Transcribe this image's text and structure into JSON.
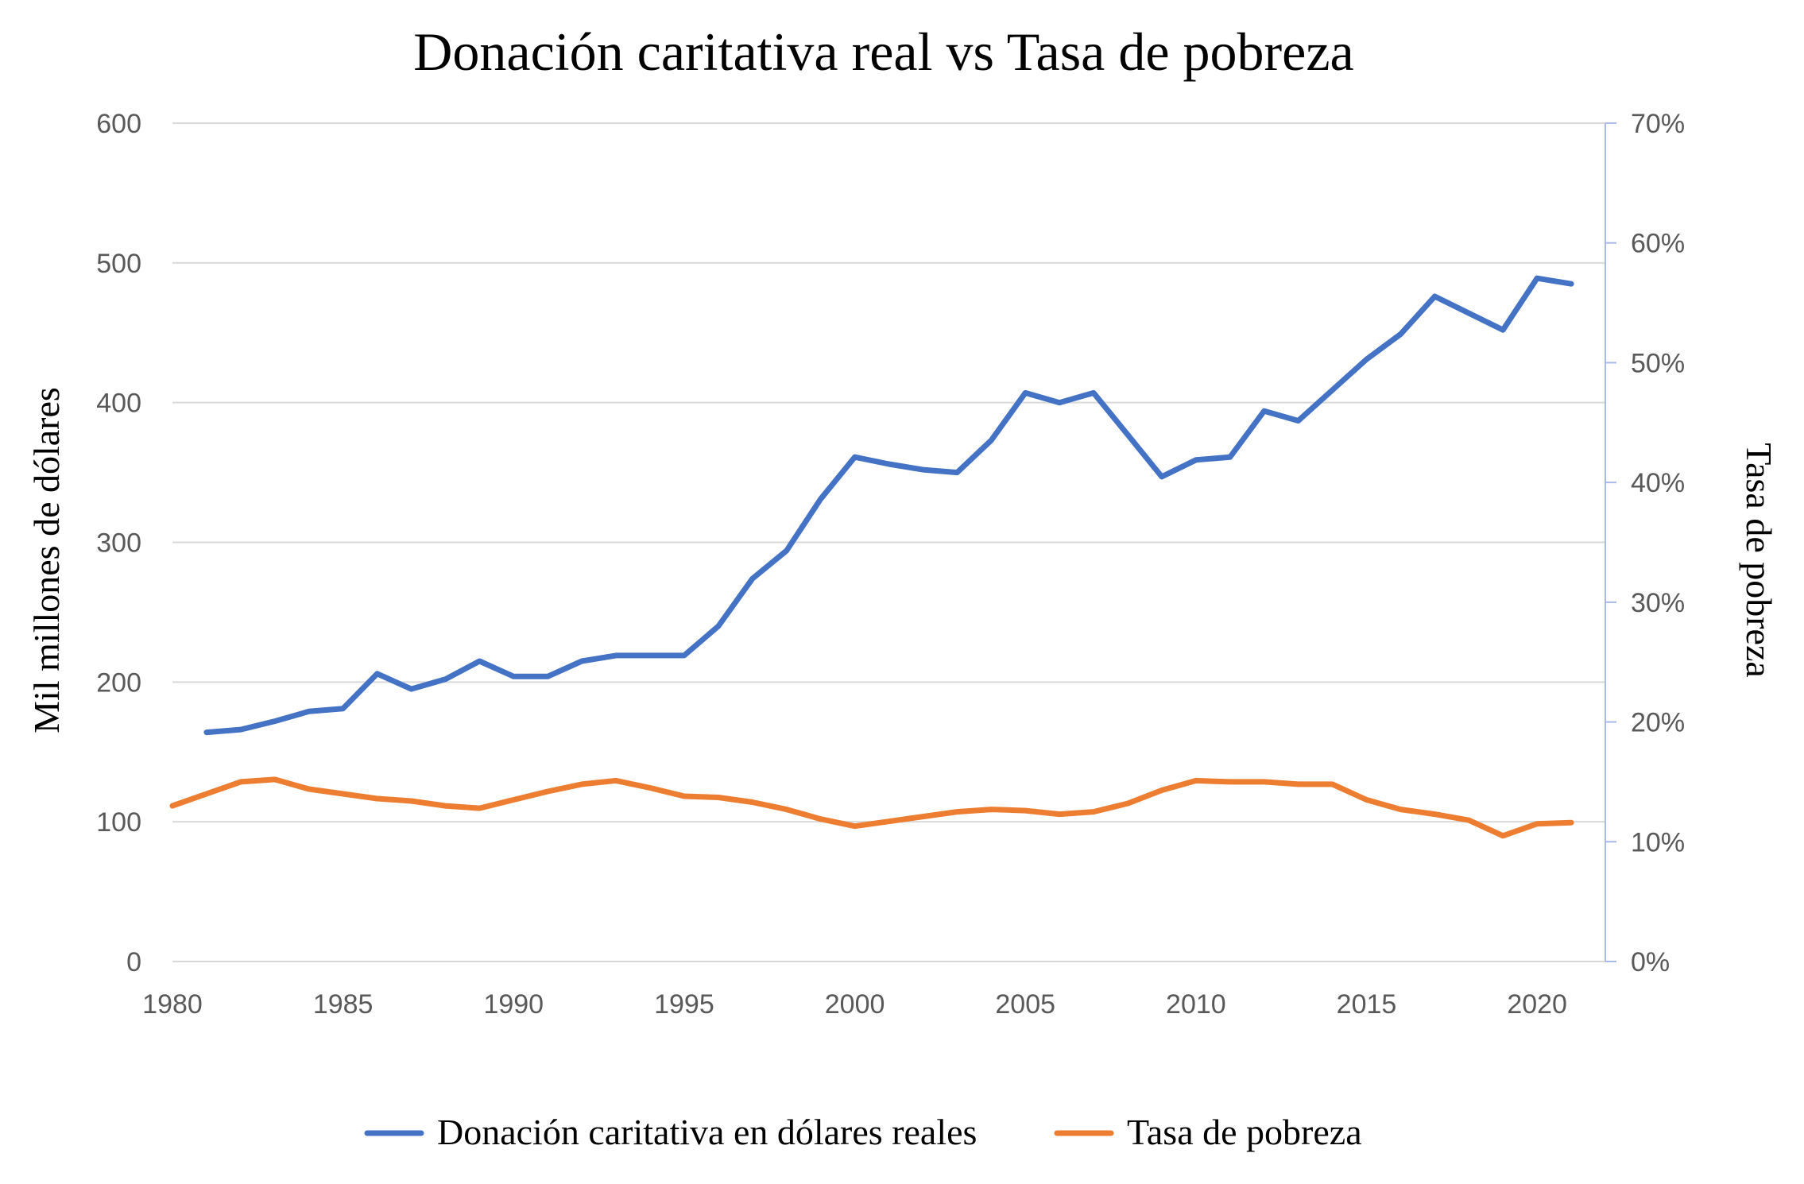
{
  "chart_data": {
    "type": "line",
    "title": "Donación caritativa real vs Tasa de pobreza",
    "xlabel": "",
    "ylabel": "Mil millones de dólares",
    "y2label": "Tasa de pobreza",
    "xlim": [
      1980,
      2022
    ],
    "ylim": [
      0,
      600
    ],
    "y2lim": [
      0,
      0.7
    ],
    "x_ticks": [
      1980,
      1985,
      1990,
      1995,
      2000,
      2005,
      2010,
      2015,
      2020
    ],
    "y_ticks": [
      0,
      100,
      200,
      300,
      400,
      500,
      600
    ],
    "y2_ticks": [
      "0%",
      "10%",
      "20%",
      "30%",
      "40%",
      "50%",
      "60%",
      "70%"
    ],
    "grid": true,
    "legend_position": "bottom",
    "series": [
      {
        "name": "Donación caritativa en dólares reales",
        "axis": "left",
        "color": "#4472c4",
        "x": [
          1981,
          1982,
          1983,
          1984,
          1985,
          1986,
          1987,
          1988,
          1989,
          1990,
          1991,
          1992,
          1993,
          1994,
          1995,
          1996,
          1997,
          1998,
          1999,
          2000,
          2001,
          2002,
          2003,
          2004,
          2005,
          2006,
          2007,
          2008,
          2009,
          2010,
          2011,
          2012,
          2013,
          2014,
          2015,
          2016,
          2017,
          2018,
          2019,
          2020,
          2021
        ],
        "values": [
          164,
          166,
          172,
          179,
          181,
          206,
          195,
          202,
          215,
          204,
          204,
          215,
          219,
          219,
          219,
          240,
          274,
          294,
          331,
          361,
          356,
          352,
          350,
          373,
          407,
          400,
          407,
          377,
          347,
          359,
          361,
          394,
          387,
          409,
          431,
          449,
          476,
          464,
          452,
          489,
          485
        ]
      },
      {
        "name": "Tasa de pobreza",
        "axis": "right",
        "color": "#ed7d31",
        "x": [
          1980,
          1981,
          1982,
          1983,
          1984,
          1985,
          1986,
          1987,
          1988,
          1989,
          1990,
          1991,
          1992,
          1993,
          1994,
          1995,
          1996,
          1997,
          1998,
          1999,
          2000,
          2001,
          2002,
          2003,
          2004,
          2005,
          2006,
          2007,
          2008,
          2009,
          2010,
          2011,
          2012,
          2013,
          2014,
          2015,
          2016,
          2017,
          2018,
          2019,
          2020,
          2021
        ],
        "values": [
          0.13,
          0.14,
          0.15,
          0.152,
          0.144,
          0.14,
          0.136,
          0.134,
          0.13,
          0.128,
          0.135,
          0.142,
          0.148,
          0.151,
          0.145,
          0.138,
          0.137,
          0.133,
          0.127,
          0.119,
          0.113,
          0.117,
          0.121,
          0.125,
          0.127,
          0.126,
          0.123,
          0.125,
          0.132,
          0.143,
          0.151,
          0.15,
          0.15,
          0.148,
          0.148,
          0.135,
          0.127,
          0.123,
          0.118,
          0.105,
          0.115,
          0.116
        ]
      }
    ]
  }
}
